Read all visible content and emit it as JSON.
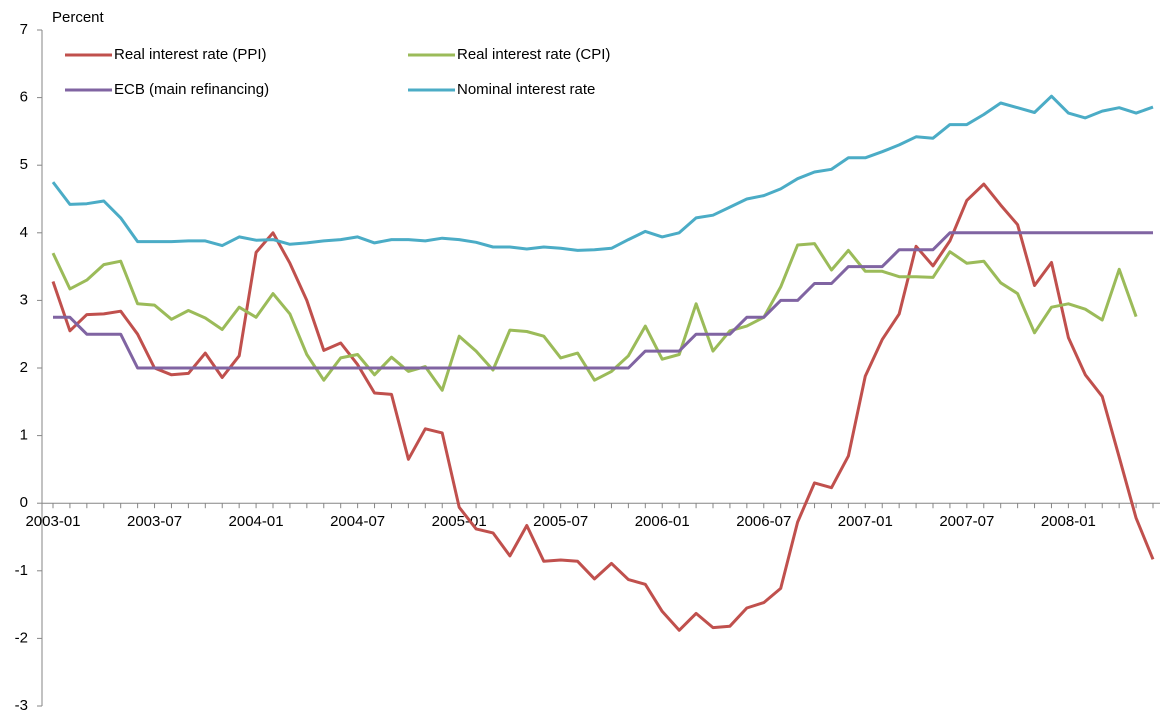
{
  "chart_data": {
    "type": "line",
    "y_label": "Percent",
    "categories": [
      "2003-01",
      null,
      null,
      null,
      null,
      null,
      "2003-07",
      null,
      null,
      null,
      null,
      null,
      "2004-01",
      null,
      null,
      null,
      null,
      null,
      "2004-07",
      null,
      null,
      null,
      null,
      null,
      "2005-01",
      null,
      null,
      null,
      null,
      null,
      "2005-07",
      null,
      null,
      null,
      null,
      null,
      "2006-01",
      null,
      null,
      null,
      null,
      null,
      "2006-07",
      null,
      null,
      null,
      null,
      null,
      "2007-01",
      null,
      null,
      null,
      null,
      null,
      "2007-07",
      null,
      null,
      null,
      null,
      null,
      "2008-01",
      null,
      null,
      null,
      null,
      null
    ],
    "ylim": [
      -3,
      7
    ],
    "yticks": [
      -3,
      -2,
      -1,
      0,
      1,
      2,
      3,
      4,
      5,
      6,
      7
    ],
    "legend": "top-left",
    "series": [
      {
        "name": "Real interest rate (PPI)",
        "color": "#c0504d",
        "values": [
          3.28,
          2.55,
          2.79,
          2.8,
          2.84,
          2.5,
          2.0,
          1.9,
          1.92,
          2.22,
          1.86,
          2.18,
          3.71,
          4.0,
          3.55,
          3.0,
          2.26,
          2.37,
          2.05,
          1.63,
          1.61,
          0.65,
          1.1,
          1.04,
          -0.06,
          -0.38,
          -0.44,
          -0.78,
          -0.33,
          -0.86,
          -0.84,
          -0.86,
          -1.12,
          -0.89,
          -1.13,
          -1.2,
          -1.6,
          -1.88,
          -1.63,
          -1.84,
          -1.82,
          -1.55,
          -1.47,
          -1.26,
          -0.28,
          0.3,
          0.23,
          0.7,
          1.88,
          2.42,
          2.8,
          3.8,
          3.51,
          3.88,
          4.48,
          4.72,
          4.41,
          4.12,
          3.22,
          3.56,
          2.45,
          1.9,
          1.58,
          0.68,
          -0.22,
          -0.83
        ]
      },
      {
        "name": "Real interest rate (CPI)",
        "color": "#9bbb59",
        "values": [
          3.7,
          3.17,
          3.3,
          3.53,
          3.58,
          2.95,
          2.93,
          2.72,
          2.85,
          2.74,
          2.57,
          2.9,
          2.75,
          3.1,
          2.8,
          2.2,
          1.82,
          2.15,
          2.2,
          1.9,
          2.16,
          1.95,
          2.02,
          1.67,
          2.47,
          2.25,
          1.97,
          2.56,
          2.54,
          2.47,
          2.15,
          2.22,
          1.82,
          1.95,
          2.18,
          2.62,
          2.13,
          2.2,
          2.95,
          2.25,
          2.55,
          2.62,
          2.75,
          3.2,
          3.82,
          3.84,
          3.45,
          3.74,
          3.43,
          3.43,
          3.35,
          3.35,
          3.34,
          3.72,
          3.55,
          3.58,
          3.26,
          3.1,
          2.52,
          2.9,
          2.95,
          2.87,
          2.71,
          3.46,
          2.76,
          null
        ]
      },
      {
        "name": "ECB (main refinancing)",
        "color": "#8064a2",
        "values": [
          2.75,
          2.75,
          2.5,
          2.5,
          2.5,
          2,
          2,
          2,
          2,
          2,
          2,
          2,
          2,
          2,
          2,
          2,
          2,
          2,
          2,
          2,
          2,
          2,
          2,
          2,
          2,
          2,
          2,
          2,
          2,
          2,
          2,
          2,
          2,
          2,
          2,
          2.25,
          2.25,
          2.25,
          2.5,
          2.5,
          2.5,
          2.75,
          2.75,
          3,
          3,
          3.25,
          3.25,
          3.5,
          3.5,
          3.5,
          3.75,
          3.75,
          3.75,
          4,
          4,
          4,
          4,
          4,
          4,
          4,
          4,
          4,
          4,
          4,
          4,
          4
        ]
      },
      {
        "name": "Nominal interest rate",
        "color": "#4bacc6",
        "values": [
          4.75,
          4.42,
          4.43,
          4.47,
          4.22,
          3.87,
          3.87,
          3.87,
          3.88,
          3.88,
          3.81,
          3.94,
          3.89,
          3.9,
          3.83,
          3.85,
          3.88,
          3.9,
          3.94,
          3.85,
          3.9,
          3.9,
          3.88,
          3.92,
          3.9,
          3.86,
          3.79,
          3.79,
          3.76,
          3.79,
          3.77,
          3.74,
          3.75,
          3.77,
          3.9,
          4.02,
          3.94,
          4.0,
          4.22,
          4.26,
          4.38,
          4.5,
          4.55,
          4.65,
          4.8,
          4.9,
          4.94,
          5.11,
          5.11,
          5.2,
          5.3,
          5.42,
          5.4,
          5.6,
          5.6,
          5.75,
          5.92,
          5.85,
          5.78,
          6.02,
          5.77,
          5.7,
          5.8,
          5.85,
          5.77,
          5.86
        ]
      }
    ]
  }
}
